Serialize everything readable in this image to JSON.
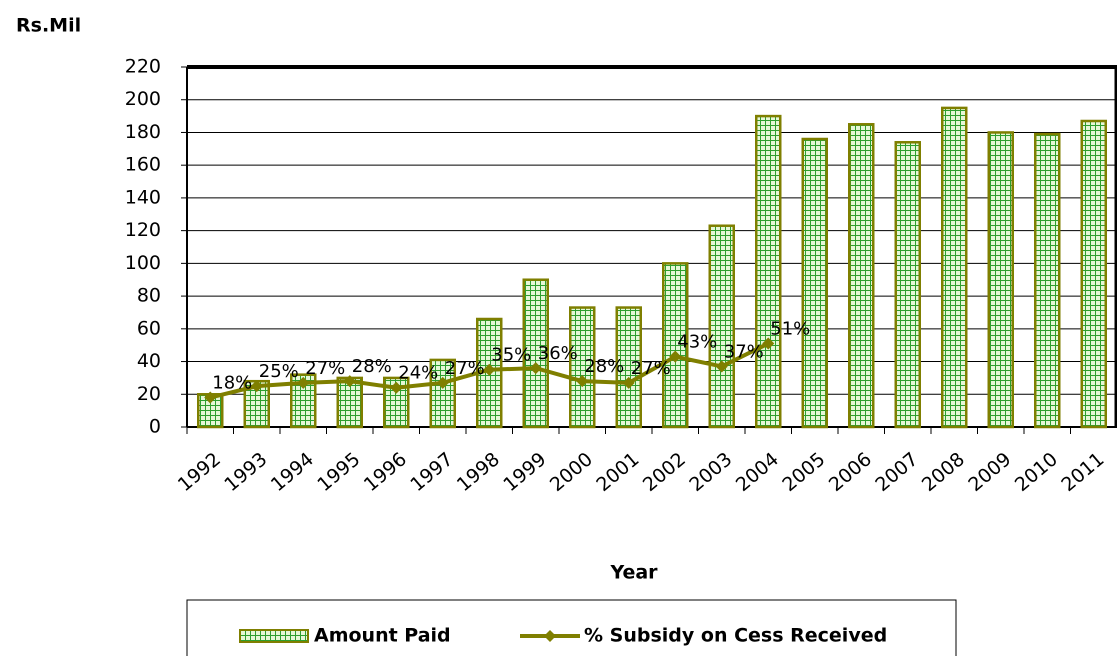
{
  "chart_data": {
    "type": "bar",
    "y_label": "Rs.Mil",
    "x_label": "Year",
    "categories": [
      "1992",
      "1993",
      "1994",
      "1995",
      "1996",
      "1997",
      "1998",
      "1999",
      "2000",
      "2001",
      "2002",
      "2003",
      "2004",
      "2005",
      "2006",
      "2007",
      "2008",
      "2009",
      "2010",
      "2011"
    ],
    "series": [
      {
        "name": "Amount Paid",
        "type": "bar",
        "color": "#2e9e2e",
        "edge": "#7f7f00",
        "values": [
          20,
          28,
          32,
          30,
          30,
          41,
          66,
          90,
          73,
          73,
          100,
          123,
          190,
          176,
          185,
          174,
          195,
          180,
          179,
          187
        ]
      },
      {
        "name": "% Subsidy on Cess Received",
        "type": "line",
        "color": "#7f7f00",
        "values": [
          18,
          25,
          27,
          28,
          24,
          27,
          35,
          36,
          28,
          27,
          43,
          37,
          51,
          null,
          null,
          null,
          null,
          null,
          null,
          null
        ],
        "value_labels": [
          "18%",
          "25%",
          "27%",
          "28%",
          "24%",
          "27%",
          "35%",
          "36%",
          "28%",
          "27%",
          "43%",
          "37%",
          "51%",
          null,
          null,
          null,
          null,
          null,
          null,
          null
        ]
      }
    ],
    "ylim": [
      0,
      220
    ],
    "yticks": [
      0,
      20,
      40,
      60,
      80,
      100,
      120,
      140,
      160,
      180,
      200,
      220
    ],
    "grid": true,
    "legend": "bottom"
  }
}
